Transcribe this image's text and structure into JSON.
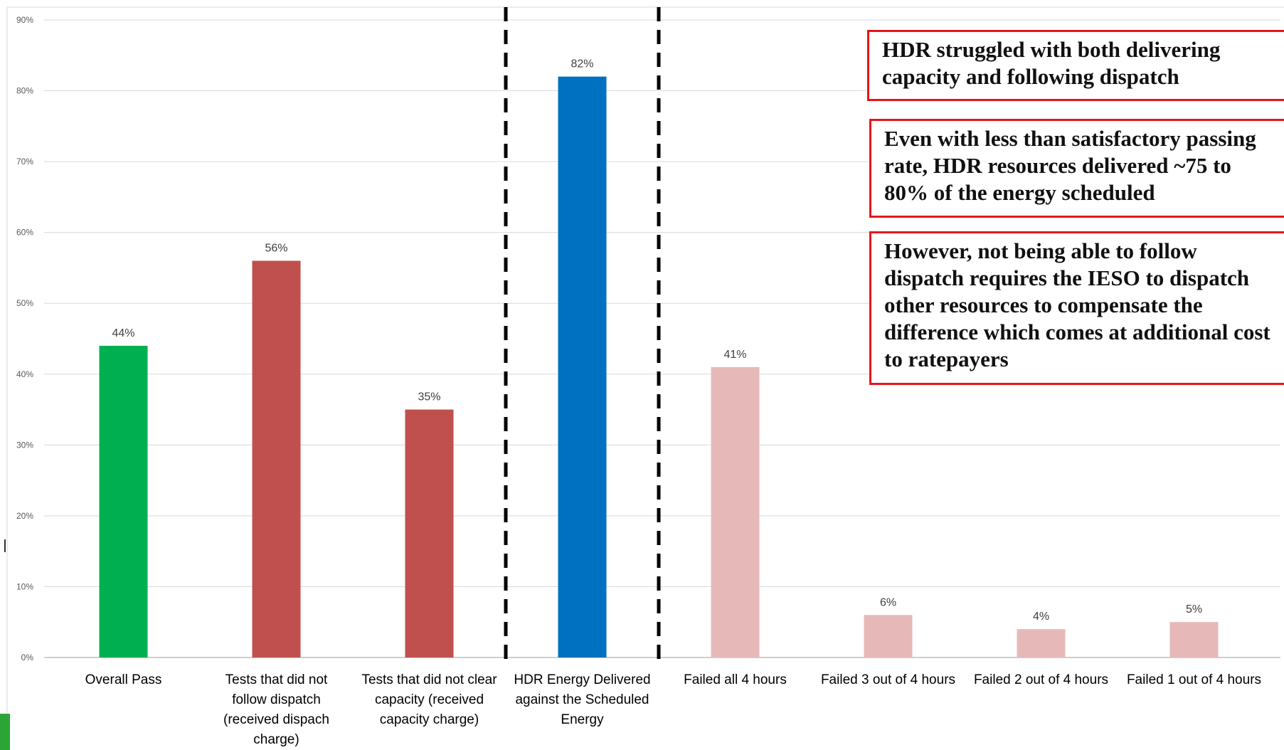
{
  "chart_data": {
    "type": "bar",
    "categories": [
      "Overall Pass",
      "Tests that did not follow dispatch (received dispach charge)",
      "Tests that did not clear capacity (received capacity charge)",
      "HDR Energy Delivered against the Scheduled Energy",
      "Failed all 4 hours",
      "Failed 3 out of 4 hours",
      "Failed 2 out of 4 hours",
      "Failed 1 out of 4 hours"
    ],
    "category_lines": [
      [
        "Overall Pass"
      ],
      [
        "Tests that did not",
        "follow dispatch",
        "(received dispach",
        "charge)"
      ],
      [
        "Tests that did not clear",
        "capacity (received",
        "capacity charge)"
      ],
      [
        "HDR Energy Delivered",
        "against the Scheduled",
        "Energy"
      ],
      [
        "Failed all 4 hours"
      ],
      [
        "Failed 3 out of 4 hours"
      ],
      [
        "Failed 2 out of 4 hours"
      ],
      [
        "Failed 1 out of 4 hours"
      ]
    ],
    "values": [
      44,
      56,
      35,
      82,
      41,
      6,
      4,
      5
    ],
    "data_labels": [
      "44%",
      "56%",
      "35%",
      "82%",
      "41%",
      "6%",
      "4%",
      "5%"
    ],
    "bar_colors": [
      "#00b050",
      "#c0504d",
      "#c0504d",
      "#0070c0",
      "#e6b9b8",
      "#e6b9b8",
      "#e6b9b8",
      "#e6b9b8"
    ],
    "ylim": [
      0,
      90
    ],
    "yticks": [
      0,
      10,
      20,
      30,
      40,
      50,
      60,
      70,
      80,
      90
    ],
    "ytick_labels": [
      "0%",
      "10%",
      "20%",
      "30%",
      "40%",
      "50%",
      "60%",
      "70%",
      "80%",
      "90%"
    ],
    "grid": true,
    "divider_after_categories": [
      2,
      3
    ],
    "title": "",
    "xlabel": "",
    "ylabel": ""
  },
  "callouts": [
    "HDR struggled with both delivering capacity and following dispatch",
    "Even with less than satisfactory passing rate, HDR resources delivered ~75 to 80% of the energy scheduled",
    "However, not being able to follow dispatch requires the IESO to dispatch other resources to compensate the difference which comes at additional cost to ratepayers"
  ],
  "colors": {
    "callout_border": "#e8141b",
    "grid": "#d9d9d9",
    "axis_text": "#595959",
    "category_text": "#000000"
  }
}
